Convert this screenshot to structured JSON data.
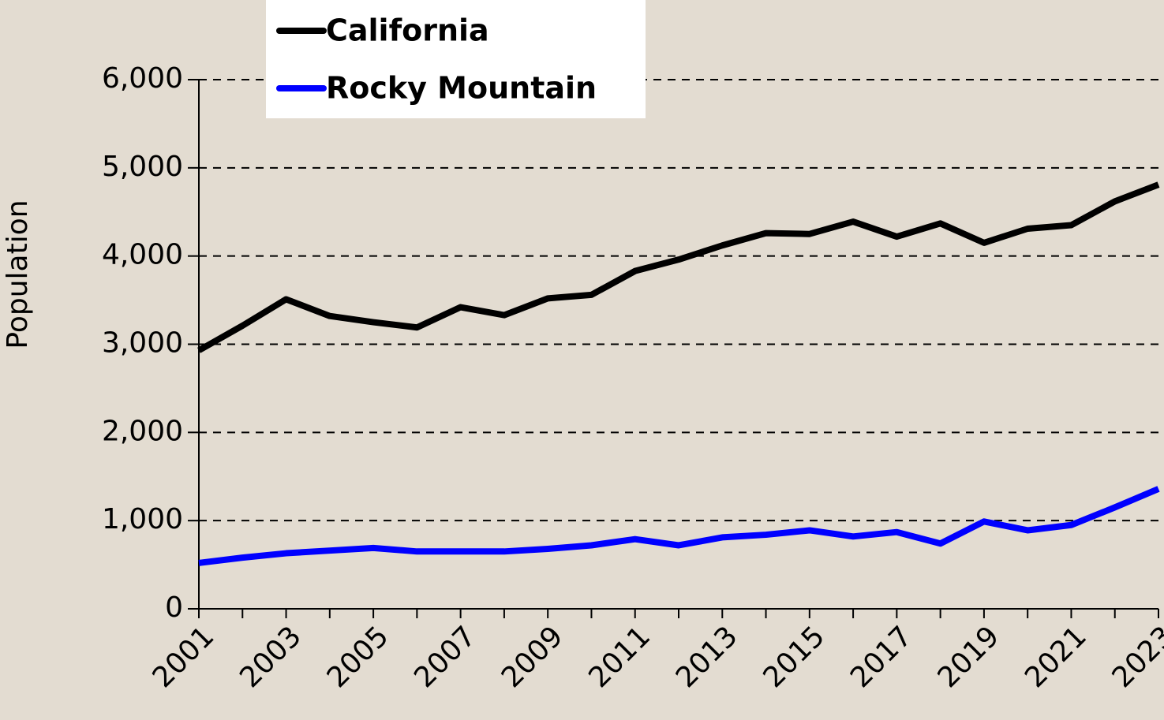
{
  "chart_data": {
    "type": "line",
    "y_label": "Population",
    "x": [
      2001,
      2002,
      2003,
      2004,
      2005,
      2006,
      2007,
      2008,
      2009,
      2010,
      2011,
      2012,
      2013,
      2014,
      2015,
      2016,
      2017,
      2018,
      2019,
      2020,
      2021,
      2022,
      2023
    ],
    "series": [
      {
        "name": "California",
        "color": "#000000",
        "values": [
          2930,
          3210,
          3510,
          3320,
          3250,
          3190,
          3420,
          3330,
          3520,
          3560,
          3830,
          3960,
          4120,
          4260,
          4250,
          4390,
          4220,
          4370,
          4150,
          4310,
          4350,
          4620,
          4810
        ]
      },
      {
        "name": "Rocky Mountain",
        "color": "#0000ff",
        "values": [
          520,
          580,
          630,
          660,
          690,
          650,
          650,
          650,
          680,
          720,
          790,
          720,
          810,
          840,
          890,
          820,
          870,
          740,
          990,
          890,
          950,
          1150,
          1360
        ]
      }
    ],
    "xlim": [
      2001,
      2023
    ],
    "xticks": [
      2001,
      2003,
      2005,
      2007,
      2009,
      2011,
      2013,
      2015,
      2017,
      2019,
      2021,
      2023
    ],
    "ylim": [
      0,
      6000
    ],
    "yticks": [
      0,
      {
        "value": 1000,
        "label": "1,000"
      },
      {
        "value": 2000,
        "label": "2,000"
      },
      {
        "value": 3000,
        "label": "3,000"
      },
      {
        "value": 4000,
        "label": "4,000"
      },
      {
        "value": 5000,
        "label": "5,000"
      },
      {
        "value": 6000,
        "label": "6,000"
      }
    ],
    "grid": true,
    "legend": "top-left"
  }
}
